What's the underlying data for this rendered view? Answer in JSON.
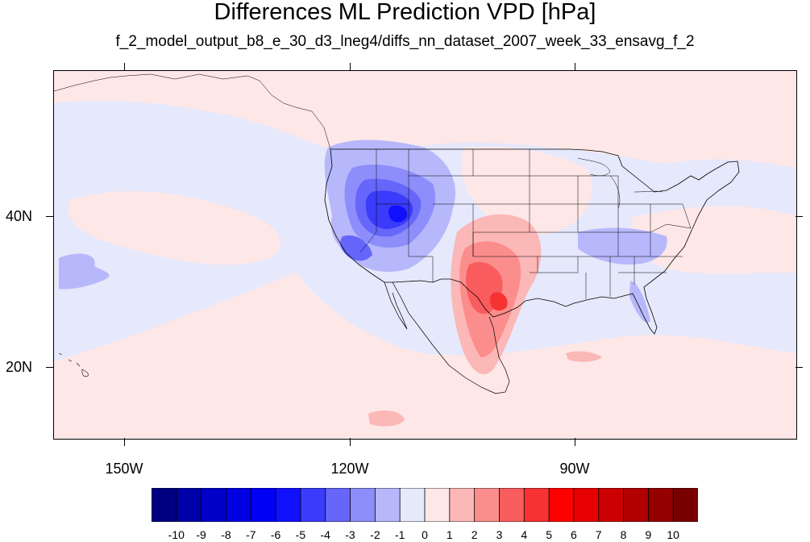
{
  "title": "Differences ML Prediction VPD [hPa]",
  "subtitle": "f_2_model_output_b8_e_30_d3_lneg4/diffs_nn_dataset_2007_week_33_ensavg_f_2",
  "map": {
    "lon_range": [
      -159.5,
      -60
    ],
    "lat_range": [
      11,
      60
    ],
    "lat_labels": [
      {
        "text": "40N",
        "value": 40
      },
      {
        "text": "20N",
        "value": 20
      }
    ],
    "lon_labels": [
      {
        "text": "150W",
        "value": -150
      },
      {
        "text": "120W",
        "value": -120
      },
      {
        "text": "90W",
        "value": -90
      }
    ],
    "background_level": -1
  },
  "colorbar": {
    "levels": [
      "-10",
      "-9",
      "-8",
      "-7",
      "-6",
      "-5",
      "-4",
      "-3",
      "-2",
      "-1",
      "0",
      "1",
      "2",
      "3",
      "4",
      "5",
      "6",
      "7",
      "8",
      "9",
      "10"
    ],
    "colors": [
      "#000080",
      "#0000a8",
      "#0000c8",
      "#0000e0",
      "#0000f4",
      "#1010ff",
      "#3b3bfb",
      "#6666fa",
      "#8d8dfb",
      "#b7b7fb",
      "#e6e8fb",
      "#fde7e7",
      "#fcb7b7",
      "#fb8d8d",
      "#f95c5c",
      "#f73232",
      "#ff0000",
      "#e60000",
      "#cc0000",
      "#b00000",
      "#940000",
      "#790000"
    ]
  }
}
